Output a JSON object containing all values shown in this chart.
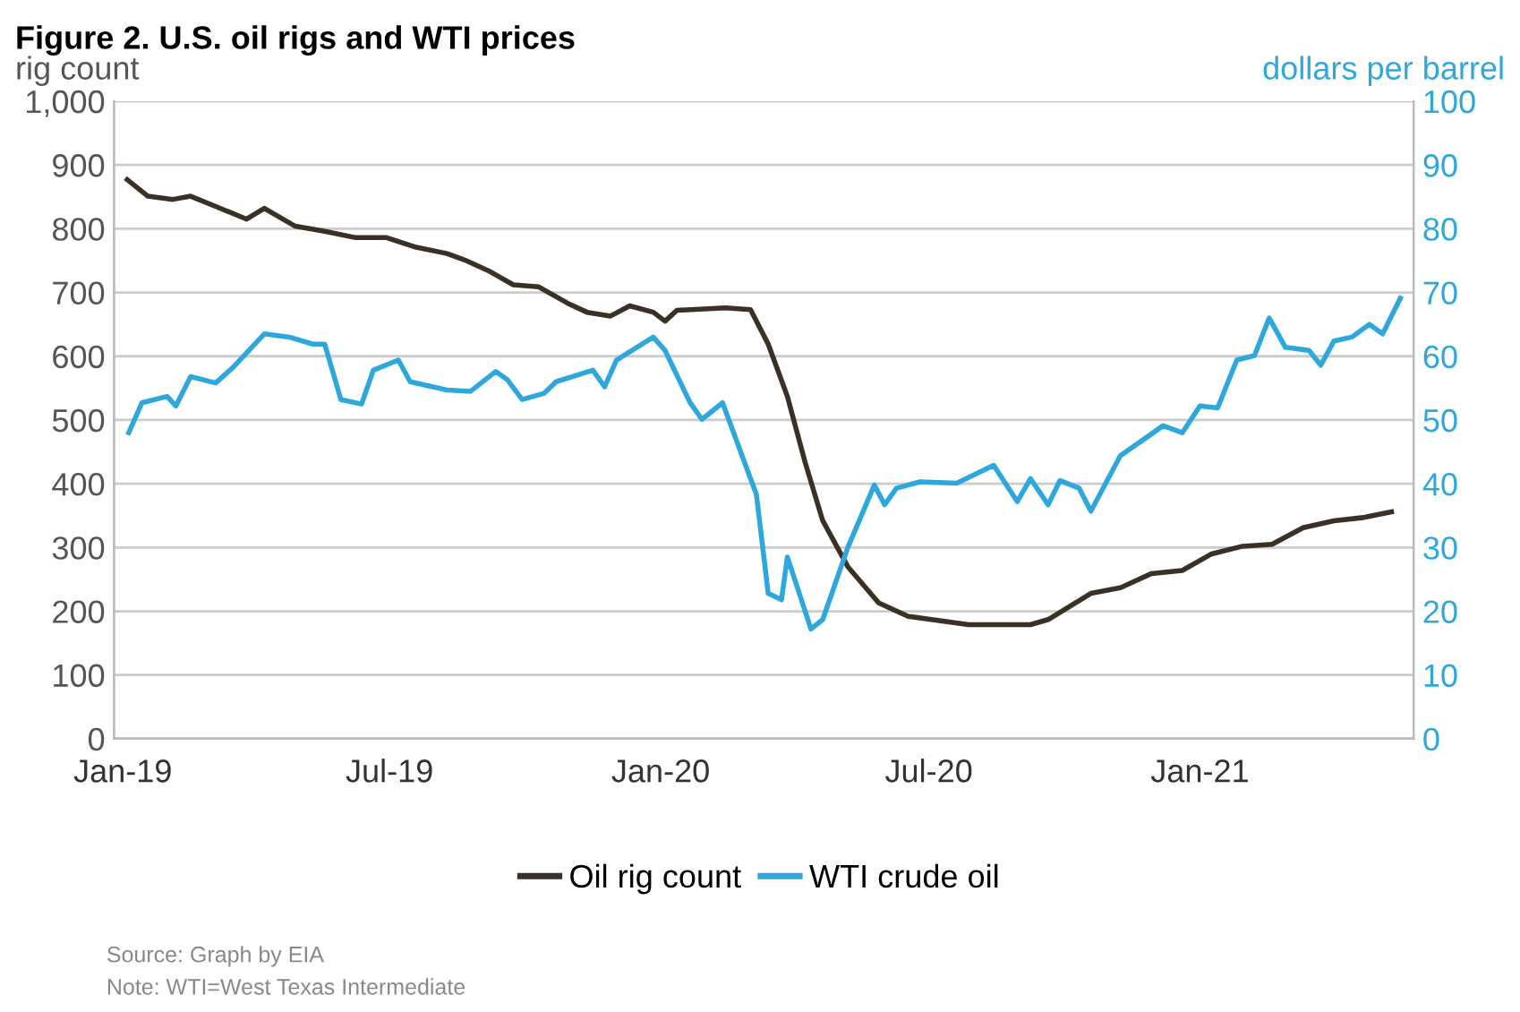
{
  "chart_data": {
    "type": "line",
    "title": "Figure 2. U.S. oil rigs and WTI prices",
    "ylabel": "rig count",
    "y2label": "dollars per barrel",
    "xlim": [
      "2018-12-26",
      "2021-05-26"
    ],
    "xticks": [
      {
        "value": "2019-01-01",
        "label": "Jan-19"
      },
      {
        "value": "2019-07-01",
        "label": "Jul-19"
      },
      {
        "value": "2020-01-01",
        "label": "Jan-20"
      },
      {
        "value": "2020-07-01",
        "label": "Jul-20"
      },
      {
        "value": "2021-01-01",
        "label": "Jan-21"
      }
    ],
    "ylim": [
      0,
      1000
    ],
    "yticks": [
      0,
      {
        "value": 100,
        "label": "100"
      },
      {
        "value": 200,
        "label": "200"
      },
      {
        "value": 300,
        "label": "300"
      },
      {
        "value": 400,
        "label": "400"
      },
      {
        "value": 500,
        "label": "500"
      },
      {
        "value": 600,
        "label": "600"
      },
      {
        "value": 700,
        "label": "700"
      },
      {
        "value": 800,
        "label": "800"
      },
      {
        "value": 900,
        "label": "900"
      },
      {
        "value": 1000,
        "label": "1,000"
      }
    ],
    "y2lim": [
      0,
      100
    ],
    "y2ticks": [
      0,
      10,
      20,
      30,
      40,
      50,
      60,
      70,
      80,
      90,
      100
    ],
    "grid": "y",
    "legend": "bottom",
    "marker": "none",
    "line_style": "solid",
    "series": [
      {
        "name": "Oil rig count",
        "color": "#3b3024",
        "x": [
          "2019-01-04",
          "2019-01-18",
          "2019-02-04",
          "2019-02-16",
          "2019-03-05",
          "2019-03-26",
          "2019-04-07",
          "2019-04-28",
          "2019-05-18",
          "2019-06-08",
          "2019-06-29",
          "2019-07-19",
          "2019-08-09",
          "2019-08-21",
          "2019-09-07",
          "2019-09-23",
          "2019-10-10",
          "2019-10-30",
          "2019-11-12",
          "2019-11-28",
          "2019-12-11",
          "2019-12-27",
          "2020-01-04",
          "2020-01-12",
          "2020-02-14",
          "2020-03-02",
          "2020-03-14",
          "2020-03-27",
          "2020-04-08",
          "2020-04-20",
          "2020-05-07",
          "2020-05-28",
          "2020-06-17",
          "2020-07-28",
          "2020-09-08",
          "2020-09-20",
          "2020-10-19",
          "2020-11-08",
          "2020-11-29",
          "2020-12-20",
          "2021-01-09",
          "2021-01-30",
          "2021-02-19",
          "2021-03-12",
          "2021-04-02",
          "2021-04-22",
          "2021-05-11"
        ],
        "values": [
          877,
          851,
          846,
          851,
          835,
          815,
          832,
          804,
          796,
          786,
          786,
          771,
          761,
          751,
          733,
          712,
          709,
          683,
          669,
          663,
          679,
          669,
          655,
          672,
          676,
          673,
          619,
          537,
          434,
          342,
          270,
          213,
          192,
          179,
          179,
          187,
          228,
          237,
          259,
          264,
          290,
          302,
          305,
          331,
          342,
          347,
          356
        ]
      },
      {
        "name": "WTI crude oil",
        "color": "#2ea8dc",
        "axis": "y2",
        "x": [
          "2019-01-05",
          "2019-01-14",
          "2019-01-31",
          "2019-02-06",
          "2019-02-16",
          "2019-03-05",
          "2019-03-17",
          "2019-04-07",
          "2019-04-24",
          "2019-05-10",
          "2019-05-18",
          "2019-05-29",
          "2019-06-12",
          "2019-06-20",
          "2019-07-07",
          "2019-07-15",
          "2019-08-09",
          "2019-08-25",
          "2019-09-11",
          "2019-09-19",
          "2019-09-29",
          "2019-10-14",
          "2019-10-22",
          "2019-11-16",
          "2019-11-24",
          "2019-12-02",
          "2019-12-27",
          "2020-01-04",
          "2020-01-21",
          "2020-01-29",
          "2020-02-12",
          "2020-03-06",
          "2020-03-14",
          "2020-03-23",
          "2020-03-27",
          "2020-04-12",
          "2020-04-20",
          "2020-05-07",
          "2020-05-25",
          "2020-06-01",
          "2020-06-09",
          "2020-06-25",
          "2020-07-20",
          "2020-08-14",
          "2020-08-30",
          "2020-09-08",
          "2020-09-20",
          "2020-09-28",
          "2020-10-11",
          "2020-10-19",
          "2020-11-08",
          "2020-11-21",
          "2020-12-07",
          "2020-12-20",
          "2021-01-01",
          "2021-01-13",
          "2021-01-26",
          "2021-02-07",
          "2021-02-17",
          "2021-02-28",
          "2021-03-16",
          "2021-03-24",
          "2021-04-02",
          "2021-04-14",
          "2021-04-26",
          "2021-05-05",
          "2021-05-17"
        ],
        "values": [
          48.0,
          52.7,
          53.7,
          52.2,
          56.8,
          55.8,
          58.3,
          63.5,
          63.0,
          61.9,
          61.9,
          53.2,
          52.5,
          57.8,
          59.4,
          56.0,
          54.7,
          54.5,
          57.6,
          56.3,
          53.2,
          54.2,
          56.0,
          57.8,
          55.2,
          59.4,
          63.0,
          60.9,
          52.7,
          50.1,
          52.7,
          38.3,
          22.8,
          21.8,
          28.5,
          17.2,
          18.7,
          30.0,
          39.8,
          36.7,
          39.3,
          40.3,
          40.1,
          42.9,
          37.2,
          40.8,
          36.7,
          40.5,
          39.3,
          35.7,
          44.4,
          46.5,
          49.1,
          48.0,
          52.2,
          51.9,
          59.4,
          60.1,
          66.0,
          61.4,
          60.9,
          58.6,
          62.4,
          63.0,
          65.0,
          63.5,
          69.1
        ]
      }
    ],
    "annotations": [
      "Source: Graph by EIA",
      "Note: WTI=West Texas Intermediate"
    ]
  }
}
